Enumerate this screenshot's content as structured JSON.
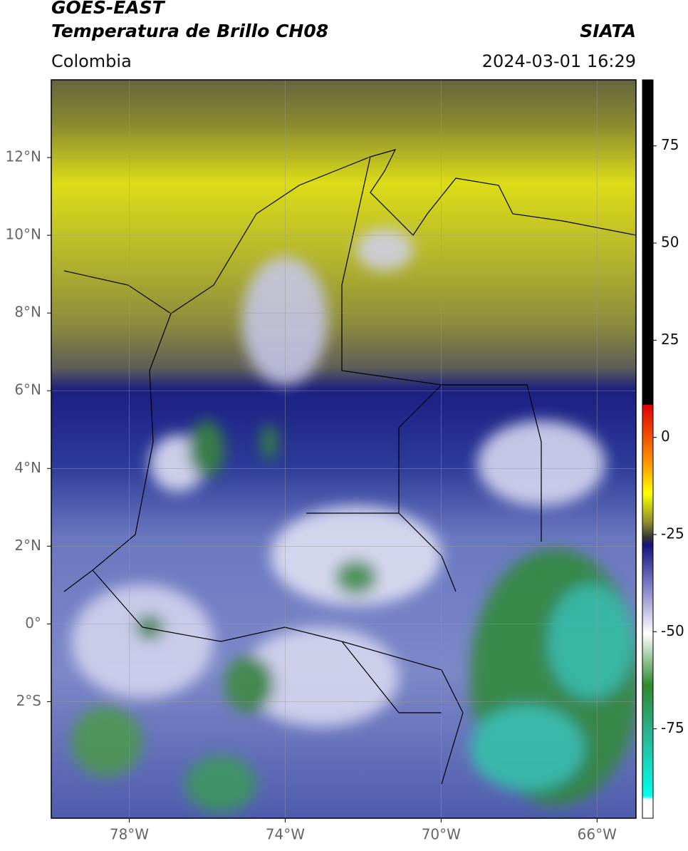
{
  "header": {
    "title": "GOES-EAST",
    "subtitle": "Temperatura de Brillo CH08",
    "source": "SIATA",
    "region": "Colombia",
    "datetime": "2024-03-01 16:29"
  },
  "map": {
    "xlim": [
      -80,
      -65
    ],
    "ylim": [
      -5,
      14
    ],
    "xticks": [
      {
        "value": -78,
        "label": "78°W"
      },
      {
        "value": -74,
        "label": "74°W"
      },
      {
        "value": -70,
        "label": "70°W"
      },
      {
        "value": -66,
        "label": "66°W"
      }
    ],
    "yticks": [
      {
        "value": 12,
        "label": "12°N"
      },
      {
        "value": 10,
        "label": "10°N"
      },
      {
        "value": 8,
        "label": "8°N"
      },
      {
        "value": 6,
        "label": "6°N"
      },
      {
        "value": 4,
        "label": "4°N"
      },
      {
        "value": 2,
        "label": "2°N"
      },
      {
        "value": 0,
        "label": "0°"
      },
      {
        "value": -2,
        "label": "2°S"
      }
    ],
    "grid": true
  },
  "colorbar": {
    "lim": [
      -98,
      92
    ],
    "ticks": [
      75,
      50,
      25,
      0,
      -25,
      -50,
      -75
    ]
  }
}
